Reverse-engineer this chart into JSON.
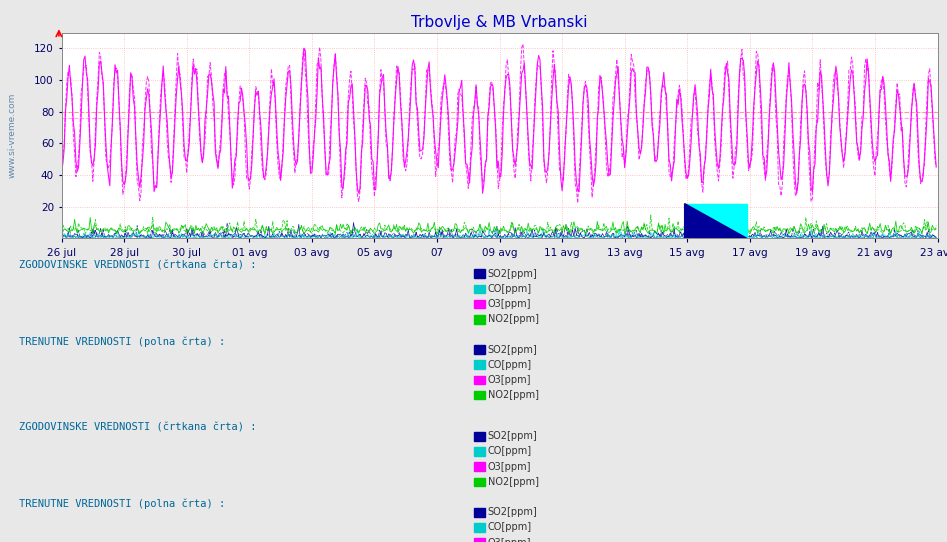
{
  "title": "Trbovlje & MB Vrbanski",
  "title_color": "#0000cc",
  "bg_color": "#e8e8e8",
  "plot_bg_color": "#ffffff",
  "grid_color_v": "#ffaaaa",
  "grid_color_h": "#ffaaaa",
  "dashed_h1_color": "#ff88ff",
  "dashed_h2_color": "#ff88ff",
  "xlim": [
    0,
    672
  ],
  "ylim": [
    0,
    130
  ],
  "yticks": [
    20,
    40,
    60,
    80,
    100,
    120
  ],
  "xtick_labels": [
    "26 jul",
    "28 jul",
    "30 jul",
    "01 avg",
    "03 avg",
    "05 avg",
    "07",
    "09 avg",
    "11 avg",
    "13 avg",
    "15 avg",
    "17 avg",
    "19 avg",
    "21 avg",
    "23 avg"
  ],
  "so2_color": "#000099",
  "co_color": "#00cccc",
  "o3_color": "#ff00ff",
  "no2_color": "#00cc00",
  "tick_color": "#000066",
  "watermark_text": "www.si-vreme.com",
  "wm_color": "#336699",
  "section1_title": "ZGODOVINSKE VREDNOSTI (črtkana črta) :",
  "section2_title": "TRENUTNE VREDNOSTI (polna črta) :",
  "section3_title": "ZGODOVINSKE VREDNOSTI (črtkana črta) :",
  "section4_title": "TRENUTNE VREDNOSTI (polna črta) :",
  "legend_items": [
    "SO2[ppm]",
    "CO[ppm]",
    "O3[ppm]",
    "NO2[ppm]"
  ],
  "legend_colors": [
    "#000099",
    "#00cccc",
    "#ff00ff",
    "#00cc00"
  ]
}
